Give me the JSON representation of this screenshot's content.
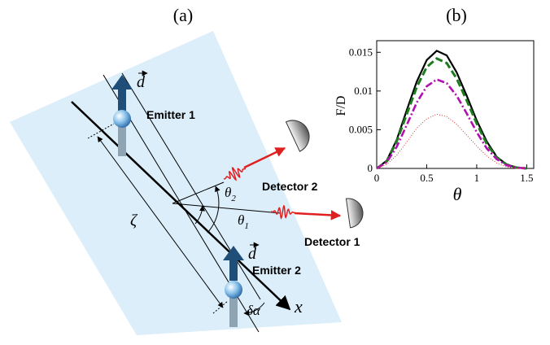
{
  "diagram": {
    "panel_label": "(a)",
    "dipole_symbol": "d",
    "emitters": [
      {
        "label": "Emitter 1"
      },
      {
        "label": "Emitter 2"
      }
    ],
    "detectors": [
      {
        "label": "Detector 1"
      },
      {
        "label": "Detector 2"
      }
    ],
    "angles": [
      {
        "symbol": "θ",
        "sub": "1"
      },
      {
        "symbol": "θ",
        "sub": "2"
      }
    ],
    "separation": "ζ",
    "tilt": "δα",
    "axis": "x"
  },
  "chart_data": {
    "type": "line",
    "title": "(b)",
    "xlabel": "θ",
    "ylabel": "F/D",
    "x": [
      0,
      0.1,
      0.2,
      0.3,
      0.4,
      0.5,
      0.6,
      0.7,
      0.8,
      0.9,
      1.0,
      1.1,
      1.2,
      1.3,
      1.4,
      1.5
    ],
    "series": [
      {
        "color": "#000000",
        "style": "solid",
        "values": [
          0,
          0.001,
          0.0037,
          0.0075,
          0.0112,
          0.014,
          0.0152,
          0.0146,
          0.0124,
          0.0094,
          0.0062,
          0.0035,
          0.0015,
          0.0005,
          0.0001,
          0
        ]
      },
      {
        "color": "#1e7b1e",
        "style": "dashed",
        "values": [
          0,
          0.0009,
          0.0035,
          0.007,
          0.0105,
          0.0131,
          0.0142,
          0.0136,
          0.0116,
          0.0088,
          0.0058,
          0.0032,
          0.0014,
          0.0005,
          0.0001,
          0
        ]
      },
      {
        "color": "#b010b0",
        "style": "dashdot",
        "values": [
          0,
          0.0008,
          0.0028,
          0.0056,
          0.0085,
          0.0106,
          0.0115,
          0.011,
          0.0094,
          0.0071,
          0.0047,
          0.0026,
          0.0012,
          0.0004,
          0.0001,
          0
        ]
      },
      {
        "color": "#e03030",
        "style": "dotted",
        "values": [
          0,
          0.0005,
          0.0017,
          0.0034,
          0.0052,
          0.0064,
          0.007,
          0.0067,
          0.0057,
          0.0043,
          0.0029,
          0.0016,
          0.0007,
          0.0002,
          0,
          0
        ]
      }
    ],
    "xlim": [
      0,
      1.57
    ],
    "ylim": [
      0,
      0.0165
    ],
    "xticks": [
      0,
      0.5,
      1,
      1.5
    ],
    "yticks": [
      0,
      0.005,
      0.01,
      0.015
    ]
  }
}
